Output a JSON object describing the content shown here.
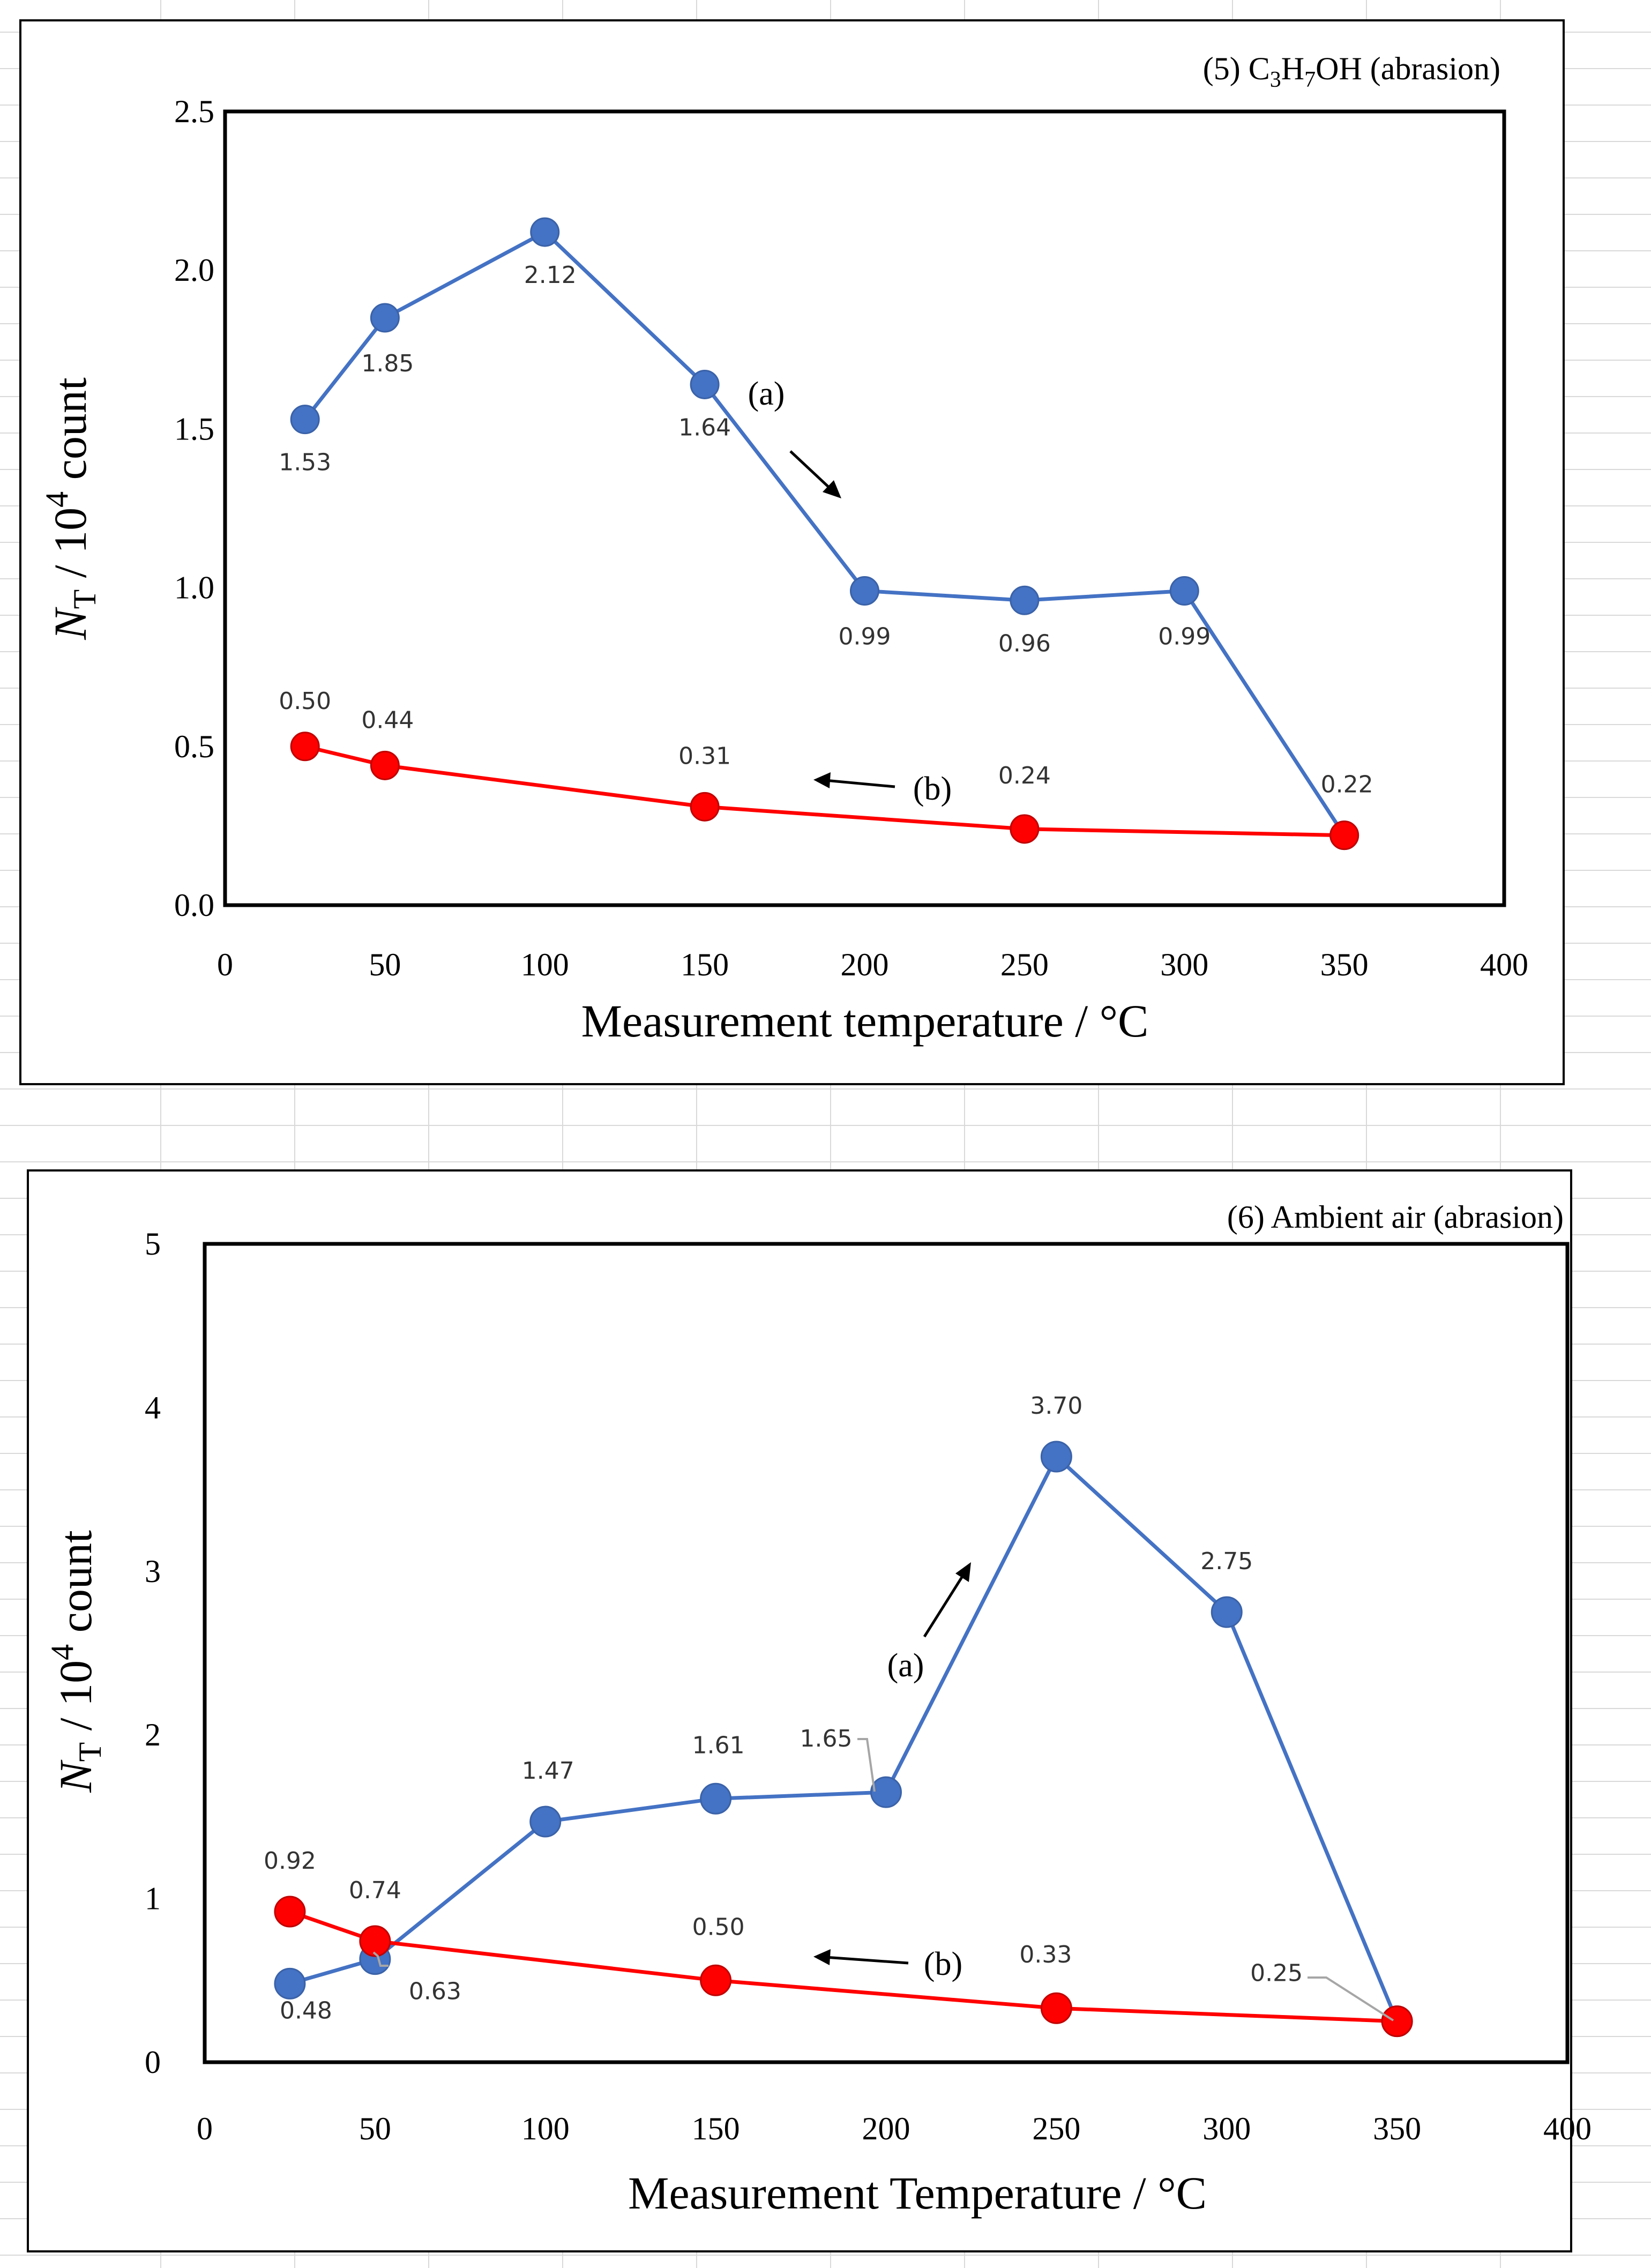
{
  "colors": {
    "series_a": "#4472C4",
    "series_b": "#FF0000",
    "axis": "#000000",
    "grid_faint": "#d9d9d9"
  },
  "chart_data": [
    {
      "type": "line",
      "title": "(5) C3H7OH (abrasion)",
      "title_parts": {
        "prefix": "(5) C",
        "sub1": "3",
        "mid": "H",
        "sub2": "7",
        "suffix": "OH (abrasion)"
      },
      "xlabel": "Measurement temperature / °C",
      "ylabel": {
        "symbol": "N",
        "symbol_sub": "T",
        "rest": " / 10",
        "sup": "4",
        "unit": " count"
      },
      "xlim": [
        0,
        400
      ],
      "ylim": [
        0,
        2.5
      ],
      "xticks": [
        "0",
        "50",
        "100",
        "150",
        "200",
        "250",
        "300",
        "350",
        "400"
      ],
      "yticks": [
        "0.0",
        "0.5",
        "1.0",
        "1.5",
        "2.0",
        "2.5"
      ],
      "grid": false,
      "legend": "none",
      "series": [
        {
          "id": "a",
          "x": [
            25,
            50,
            100,
            150,
            200,
            250,
            300,
            350
          ],
          "y": [
            1.53,
            1.85,
            2.12,
            1.64,
            0.99,
            0.96,
            0.99,
            0.22
          ],
          "labels": [
            "1.53",
            "1.85",
            "2.12",
            "1.64",
            "0.99",
            "0.96",
            "0.99",
            ""
          ]
        },
        {
          "id": "b",
          "x": [
            25,
            50,
            150,
            250,
            350
          ],
          "y": [
            0.5,
            0.44,
            0.31,
            0.24,
            0.22
          ],
          "labels": [
            "0.50",
            "0.44",
            "0.31",
            "0.24",
            "0.22"
          ]
        }
      ],
      "annotations": [
        "(a)",
        "(b)"
      ]
    },
    {
      "type": "line",
      "title": "(6) Ambient air (abrasion)",
      "xlabel": "Measurement Temperature / °C",
      "ylabel": {
        "symbol": "N",
        "symbol_sub": "T",
        "rest": " / 10",
        "sup": "4",
        "unit": " count"
      },
      "xlim": [
        0,
        400
      ],
      "ylim": [
        0,
        5
      ],
      "xticks": [
        "0",
        "50",
        "100",
        "150",
        "200",
        "250",
        "300",
        "350",
        "400"
      ],
      "yticks": [
        "0",
        "1",
        "2",
        "3",
        "4",
        "5"
      ],
      "grid": false,
      "legend": "none",
      "series": [
        {
          "id": "a",
          "x": [
            25,
            50,
            100,
            150,
            200,
            250,
            300,
            350
          ],
          "y": [
            0.48,
            0.63,
            1.47,
            1.61,
            1.65,
            3.7,
            2.75,
            0.25
          ],
          "labels": [
            "0.48",
            "0.63",
            "1.47",
            "1.61",
            "1.65",
            "3.70",
            "2.75",
            ""
          ]
        },
        {
          "id": "b",
          "x": [
            25,
            50,
            150,
            250,
            350
          ],
          "y": [
            0.92,
            0.74,
            0.5,
            0.33,
            0.25
          ],
          "labels": [
            "0.92",
            "0.74",
            "0.50",
            "0.33",
            "0.25"
          ]
        }
      ],
      "annotations": [
        "(a)",
        "(b)"
      ]
    }
  ]
}
